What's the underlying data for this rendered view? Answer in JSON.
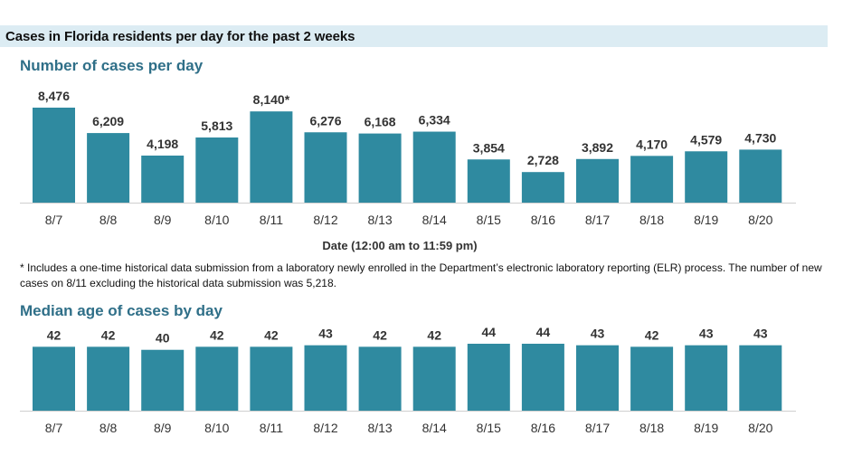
{
  "banner": {
    "title": "Cases in Florida residents per day for the past 2 weeks"
  },
  "footnote": "* Includes a one-time historical data submission from a laboratory newly enrolled in the Department’s electronic laboratory reporting (ELR) process. The number of new cases on 8/11 excluding the historical data submission was 5,218.",
  "colors": {
    "bar": "#2f8aa0",
    "banner": "#dcecf3",
    "title": "#2f6f88"
  },
  "chart_data": [
    {
      "type": "bar",
      "title": "Number of cases per day",
      "xlabel": "Date (12:00 am to 11:59 pm)",
      "ylabel": "",
      "ylim": [
        0,
        8476
      ],
      "grid": false,
      "categories": [
        "8/7",
        "8/8",
        "8/9",
        "8/10",
        "8/11",
        "8/12",
        "8/13",
        "8/14",
        "8/15",
        "8/16",
        "8/17",
        "8/18",
        "8/19",
        "8/20"
      ],
      "values": [
        8476,
        6209,
        4198,
        5813,
        8140,
        6276,
        6168,
        6334,
        3854,
        2728,
        3892,
        4170,
        4579,
        4730
      ],
      "data_labels": [
        "8,476",
        "6,209",
        "4,198",
        "5,813",
        "8,140*",
        "6,276",
        "6,168",
        "6,334",
        "3,854",
        "2,728",
        "3,892",
        "4,170",
        "4,579",
        "4,730"
      ]
    },
    {
      "type": "bar",
      "title": "Median age of cases by day",
      "xlabel": "",
      "ylabel": "",
      "ylim": [
        0,
        44
      ],
      "grid": false,
      "categories": [
        "8/7",
        "8/8",
        "8/9",
        "8/10",
        "8/11",
        "8/12",
        "8/13",
        "8/14",
        "8/15",
        "8/16",
        "8/17",
        "8/18",
        "8/19",
        "8/20"
      ],
      "values": [
        42,
        42,
        40,
        42,
        42,
        43,
        42,
        42,
        44,
        44,
        43,
        42,
        43,
        43
      ],
      "data_labels": [
        "42",
        "42",
        "40",
        "42",
        "42",
        "43",
        "42",
        "42",
        "44",
        "44",
        "43",
        "42",
        "43",
        "43"
      ]
    }
  ]
}
